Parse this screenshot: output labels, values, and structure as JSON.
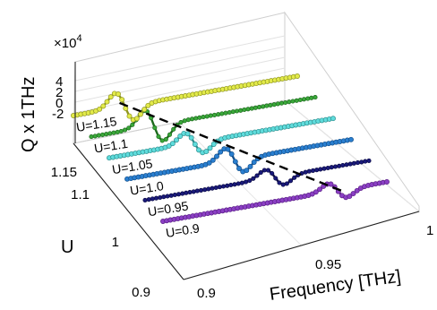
{
  "chart_data": {
    "type": "line",
    "subtype": "3d-waterfall",
    "title": "",
    "xlabel": "Frequency [THz]",
    "ylabel": "U",
    "zlabel": "Q x 1THz",
    "z_multiplier": "×10",
    "z_exponent": "4",
    "xlim": [
      0.9,
      1.0
    ],
    "ylim": [
      0.9,
      1.15
    ],
    "zlim": [
      -3,
      4
    ],
    "x_ticks": [
      {
        "value": 0.9,
        "label": "0.9"
      },
      {
        "value": 0.95,
        "label": "0.95"
      },
      {
        "value": 1.0,
        "label": "1"
      }
    ],
    "y_ticks": [
      {
        "value": 0.9,
        "label": "0.9"
      },
      {
        "value": 1.0,
        "label": "1"
      },
      {
        "value": 1.1,
        "label": "1.1"
      },
      {
        "value": 1.15,
        "label": "1.15"
      }
    ],
    "z_ticks": [
      {
        "value": -2,
        "label": "-2"
      },
      {
        "value": 0,
        "label": "0"
      },
      {
        "value": 2,
        "label": "2"
      },
      {
        "value": 4,
        "label": "4"
      }
    ],
    "grid": true,
    "series": [
      {
        "label": "U=0.9",
        "u": 0.9,
        "resonance_thz": 0.978,
        "amplitude": 1.4,
        "color": "#8b3fc4",
        "line_color": "#5a1f85",
        "dotted": true
      },
      {
        "label": "U=0.95",
        "u": 0.95,
        "resonance_thz": 0.958,
        "amplitude": 1.5,
        "color": "#1a1a7a",
        "line_color": "#0a0a44",
        "dotted": false
      },
      {
        "label": "U=1.0",
        "u": 1.0,
        "resonance_thz": 0.948,
        "amplitude": 2.2,
        "color": "#2a7fd0",
        "line_color": "#14508c",
        "dotted": true
      },
      {
        "label": "U=1.05",
        "u": 1.05,
        "resonance_thz": 0.938,
        "amplitude": 1.9,
        "color": "#5fdcdc",
        "line_color": "#2e8f8f",
        "dotted": true
      },
      {
        "label": "U=1.1",
        "u": 1.1,
        "resonance_thz": 0.928,
        "amplitude": 2.8,
        "color": "#3aa83a",
        "line_color": "#1e6a1e",
        "dotted": false
      },
      {
        "label": "U=1.15",
        "u": 1.15,
        "resonance_thz": 0.923,
        "amplitude": 2.5,
        "color": "#e2ea4a",
        "line_color": "#8f9520",
        "dotted": true
      }
    ],
    "trend_line": {
      "style": "dashed",
      "color": "#000000",
      "points": [
        {
          "u": 1.15,
          "freq": 0.923
        },
        {
          "u": 0.9,
          "freq": 0.978
        }
      ]
    }
  }
}
